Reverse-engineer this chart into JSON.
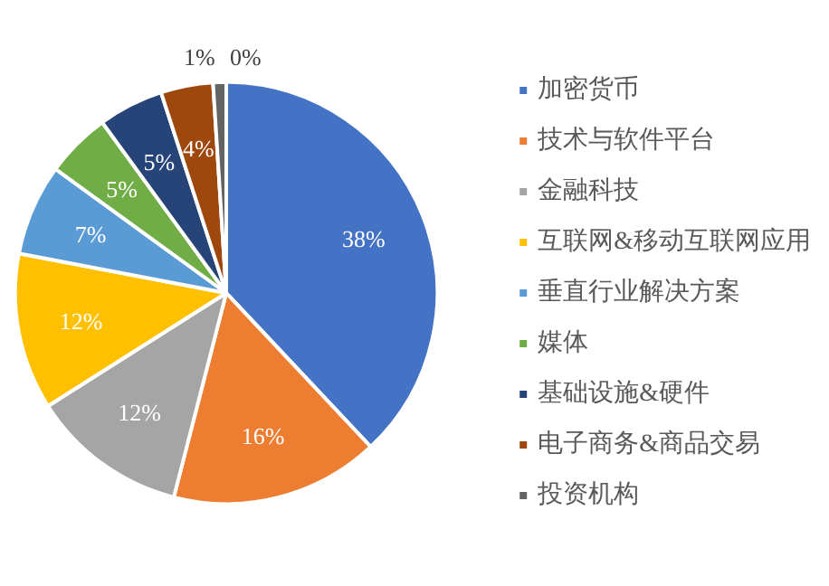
{
  "chart_data": {
    "type": "pie",
    "categories": [
      "加密货币",
      "技术与软件平台",
      "金融科技",
      "互联网&移动互联网应用",
      "垂直行业解决方案",
      "媒体",
      "基础设施&硬件",
      "电子商务&商品交易",
      "投资机构",
      null
    ],
    "values": [
      38,
      16,
      12,
      12,
      7,
      5,
      5,
      4,
      1,
      0
    ],
    "colors": [
      "#4472c4",
      "#ed7d31",
      "#a5a5a5",
      "#ffc000",
      "#5b9bd5",
      "#70ad47",
      "#264478",
      "#9e480e",
      "#636363",
      "#997300"
    ],
    "value_labels": [
      "38%",
      "16%",
      "12%",
      "12%",
      "7%",
      "5%",
      "5%",
      "4%",
      "1%",
      "0%"
    ],
    "legend": "right"
  }
}
